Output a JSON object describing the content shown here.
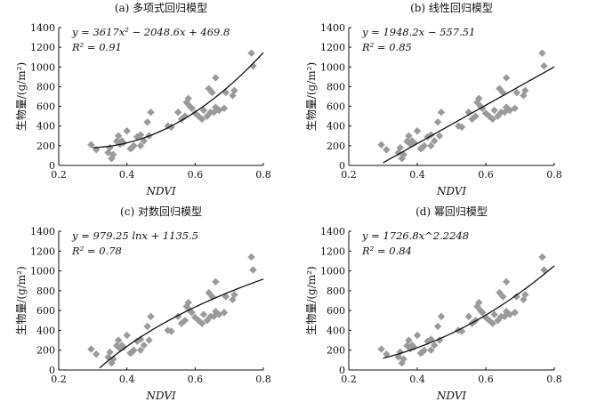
{
  "chart_data": [
    {
      "type": "scatter",
      "title": "(a) 多项式回归模型",
      "equation": "y = 3617x² − 2048.6x + 469.8",
      "r2_text": "R² = 0.91",
      "xlabel": "NDVI",
      "ylabel": "生物量/(g/m²)",
      "xlim": [
        0.2,
        0.8
      ],
      "ylim": [
        0,
        1400
      ],
      "xticks": [
        "0.2",
        "0.4",
        "0.6",
        "0.8"
      ],
      "yticks": [
        "0",
        "200",
        "400",
        "600",
        "800",
        "1000",
        "1200",
        "1400"
      ],
      "fit": {
        "model": "polynomial",
        "coefficients": [
          3617,
          -2048.6,
          469.8
        ],
        "x_range": [
          0.3,
          0.8
        ]
      },
      "marker_color": "#9a9a9a",
      "line_color": "#111111",
      "points": [
        [
          0.295,
          210
        ],
        [
          0.31,
          160
        ],
        [
          0.345,
          130
        ],
        [
          0.35,
          180
        ],
        [
          0.355,
          70
        ],
        [
          0.36,
          110
        ],
        [
          0.37,
          245
        ],
        [
          0.375,
          300
        ],
        [
          0.38,
          215
        ],
        [
          0.385,
          250
        ],
        [
          0.39,
          230
        ],
        [
          0.4,
          350
        ],
        [
          0.41,
          170
        ],
        [
          0.415,
          180
        ],
        [
          0.42,
          200
        ],
        [
          0.43,
          290
        ],
        [
          0.44,
          310
        ],
        [
          0.44,
          200
        ],
        [
          0.45,
          250
        ],
        [
          0.46,
          440
        ],
        [
          0.465,
          300
        ],
        [
          0.47,
          540
        ],
        [
          0.52,
          400
        ],
        [
          0.53,
          390
        ],
        [
          0.55,
          540
        ],
        [
          0.56,
          470
        ],
        [
          0.57,
          500
        ],
        [
          0.575,
          640
        ],
        [
          0.58,
          680
        ],
        [
          0.585,
          600
        ],
        [
          0.59,
          580
        ],
        [
          0.6,
          530
        ],
        [
          0.61,
          500
        ],
        [
          0.62,
          470
        ],
        [
          0.625,
          560
        ],
        [
          0.635,
          500
        ],
        [
          0.64,
          780
        ],
        [
          0.645,
          540
        ],
        [
          0.65,
          740
        ],
        [
          0.655,
          540
        ],
        [
          0.66,
          590
        ],
        [
          0.66,
          890
        ],
        [
          0.67,
          560
        ],
        [
          0.685,
          580
        ],
        [
          0.69,
          740
        ],
        [
          0.71,
          710
        ],
        [
          0.715,
          760
        ],
        [
          0.765,
          1140
        ],
        [
          0.77,
          1010
        ]
      ]
    },
    {
      "type": "scatter",
      "title": "(b) 线性回归模型",
      "equation": "y = 1948.2x − 557.51",
      "r2_text": "R² = 0.85",
      "xlabel": "NDVI",
      "ylabel": "生物量/(g/m²)",
      "xlim": [
        0.2,
        0.8
      ],
      "ylim": [
        0,
        1400
      ],
      "xticks": [
        "0.2",
        "0.4",
        "0.6",
        "0.8"
      ],
      "yticks": [
        "0",
        "200",
        "400",
        "600",
        "800",
        "1000",
        "1200",
        "1400"
      ],
      "fit": {
        "model": "linear",
        "slope": 1948.2,
        "intercept": -557.51,
        "x_range": [
          0.3,
          0.8
        ]
      },
      "marker_color": "#9a9a9a",
      "line_color": "#111111",
      "points": [
        [
          0.295,
          210
        ],
        [
          0.31,
          160
        ],
        [
          0.345,
          130
        ],
        [
          0.35,
          180
        ],
        [
          0.355,
          70
        ],
        [
          0.36,
          110
        ],
        [
          0.37,
          245
        ],
        [
          0.375,
          300
        ],
        [
          0.38,
          215
        ],
        [
          0.385,
          250
        ],
        [
          0.39,
          230
        ],
        [
          0.4,
          350
        ],
        [
          0.41,
          170
        ],
        [
          0.415,
          180
        ],
        [
          0.42,
          200
        ],
        [
          0.43,
          290
        ],
        [
          0.44,
          310
        ],
        [
          0.44,
          200
        ],
        [
          0.45,
          250
        ],
        [
          0.46,
          440
        ],
        [
          0.465,
          300
        ],
        [
          0.47,
          540
        ],
        [
          0.52,
          400
        ],
        [
          0.53,
          390
        ],
        [
          0.55,
          540
        ],
        [
          0.56,
          470
        ],
        [
          0.57,
          500
        ],
        [
          0.575,
          640
        ],
        [
          0.58,
          680
        ],
        [
          0.585,
          600
        ],
        [
          0.59,
          580
        ],
        [
          0.6,
          530
        ],
        [
          0.61,
          500
        ],
        [
          0.62,
          470
        ],
        [
          0.625,
          560
        ],
        [
          0.635,
          500
        ],
        [
          0.64,
          780
        ],
        [
          0.645,
          540
        ],
        [
          0.65,
          740
        ],
        [
          0.655,
          540
        ],
        [
          0.66,
          590
        ],
        [
          0.66,
          890
        ],
        [
          0.67,
          560
        ],
        [
          0.685,
          580
        ],
        [
          0.69,
          740
        ],
        [
          0.71,
          710
        ],
        [
          0.715,
          760
        ],
        [
          0.765,
          1140
        ],
        [
          0.77,
          1010
        ]
      ]
    },
    {
      "type": "scatter",
      "title": "(c) 对数回归模型",
      "equation": "y = 979.25 lnx + 1135.5",
      "r2_text": "R² = 0.78",
      "xlabel": "NDVI",
      "ylabel": "生物量/(g/m²)",
      "xlim": [
        0.2,
        0.8
      ],
      "ylim": [
        0,
        1400
      ],
      "xticks": [
        "0.2",
        "0.4",
        "0.6",
        "0.8"
      ],
      "yticks": [
        "0",
        "200",
        "400",
        "600",
        "800",
        "1000",
        "1200",
        "1400"
      ],
      "fit": {
        "model": "log",
        "a": 979.25,
        "b": 1135.5,
        "x_range": [
          0.32,
          0.8
        ]
      },
      "marker_color": "#9a9a9a",
      "line_color": "#111111",
      "points": [
        [
          0.295,
          210
        ],
        [
          0.31,
          160
        ],
        [
          0.345,
          130
        ],
        [
          0.35,
          180
        ],
        [
          0.355,
          70
        ],
        [
          0.36,
          110
        ],
        [
          0.37,
          245
        ],
        [
          0.375,
          300
        ],
        [
          0.38,
          215
        ],
        [
          0.385,
          250
        ],
        [
          0.39,
          230
        ],
        [
          0.4,
          350
        ],
        [
          0.41,
          170
        ],
        [
          0.415,
          180
        ],
        [
          0.42,
          200
        ],
        [
          0.43,
          290
        ],
        [
          0.44,
          310
        ],
        [
          0.44,
          200
        ],
        [
          0.45,
          250
        ],
        [
          0.46,
          440
        ],
        [
          0.465,
          300
        ],
        [
          0.47,
          540
        ],
        [
          0.52,
          400
        ],
        [
          0.53,
          390
        ],
        [
          0.55,
          540
        ],
        [
          0.56,
          470
        ],
        [
          0.57,
          500
        ],
        [
          0.575,
          640
        ],
        [
          0.58,
          680
        ],
        [
          0.585,
          600
        ],
        [
          0.59,
          580
        ],
        [
          0.6,
          530
        ],
        [
          0.61,
          500
        ],
        [
          0.62,
          470
        ],
        [
          0.625,
          560
        ],
        [
          0.635,
          500
        ],
        [
          0.64,
          780
        ],
        [
          0.645,
          540
        ],
        [
          0.65,
          740
        ],
        [
          0.655,
          540
        ],
        [
          0.66,
          590
        ],
        [
          0.66,
          890
        ],
        [
          0.67,
          560
        ],
        [
          0.685,
          580
        ],
        [
          0.69,
          740
        ],
        [
          0.71,
          710
        ],
        [
          0.715,
          760
        ],
        [
          0.765,
          1140
        ],
        [
          0.77,
          1010
        ]
      ]
    },
    {
      "type": "scatter",
      "title": "(d) 幂回归模型",
      "equation": "y = 1726.8x^2.2248",
      "r2_text": "R² = 0.84",
      "xlabel": "NDVI",
      "ylabel": "生物量/(g/m²)",
      "xlim": [
        0.2,
        0.8
      ],
      "ylim": [
        0,
        1400
      ],
      "xticks": [
        "0.2",
        "0.4",
        "0.6",
        "0.8"
      ],
      "yticks": [
        "0",
        "200",
        "400",
        "600",
        "800",
        "1000",
        "1200",
        "1400"
      ],
      "fit": {
        "model": "power",
        "a": 1726.8,
        "b": 2.2248,
        "x_range": [
          0.3,
          0.8
        ]
      },
      "marker_color": "#9a9a9a",
      "line_color": "#111111",
      "points": [
        [
          0.295,
          210
        ],
        [
          0.31,
          160
        ],
        [
          0.345,
          130
        ],
        [
          0.35,
          180
        ],
        [
          0.355,
          70
        ],
        [
          0.36,
          110
        ],
        [
          0.37,
          245
        ],
        [
          0.375,
          300
        ],
        [
          0.38,
          215
        ],
        [
          0.385,
          250
        ],
        [
          0.39,
          230
        ],
        [
          0.4,
          350
        ],
        [
          0.41,
          170
        ],
        [
          0.415,
          180
        ],
        [
          0.42,
          200
        ],
        [
          0.43,
          290
        ],
        [
          0.44,
          310
        ],
        [
          0.44,
          200
        ],
        [
          0.45,
          250
        ],
        [
          0.46,
          440
        ],
        [
          0.465,
          300
        ],
        [
          0.47,
          540
        ],
        [
          0.52,
          400
        ],
        [
          0.53,
          390
        ],
        [
          0.55,
          540
        ],
        [
          0.56,
          470
        ],
        [
          0.57,
          500
        ],
        [
          0.575,
          640
        ],
        [
          0.58,
          680
        ],
        [
          0.585,
          600
        ],
        [
          0.59,
          580
        ],
        [
          0.6,
          530
        ],
        [
          0.61,
          500
        ],
        [
          0.62,
          470
        ],
        [
          0.625,
          560
        ],
        [
          0.635,
          500
        ],
        [
          0.64,
          780
        ],
        [
          0.645,
          540
        ],
        [
          0.65,
          740
        ],
        [
          0.655,
          540
        ],
        [
          0.66,
          590
        ],
        [
          0.66,
          890
        ],
        [
          0.67,
          560
        ],
        [
          0.685,
          580
        ],
        [
          0.69,
          740
        ],
        [
          0.71,
          710
        ],
        [
          0.715,
          760
        ],
        [
          0.765,
          1140
        ],
        [
          0.77,
          1010
        ]
      ]
    }
  ]
}
